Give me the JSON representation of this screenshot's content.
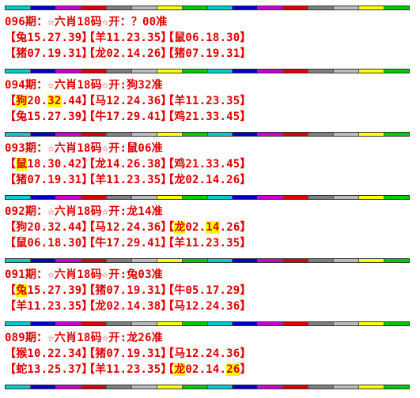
{
  "stripe_colors": [
    "#00cccc",
    "#0000cc",
    "#cc00cc",
    "#dd0000",
    "#7f7f7f",
    "#bbbbbb",
    "#ffff00",
    "#00cc00",
    "#00cccc",
    "#0000cc",
    "#cc00cc",
    "#dd0000",
    "#7f7f7f",
    "#bbbbbb",
    "#ffff00",
    "#00cc00"
  ],
  "text_color": "#e00000",
  "highlight_color": "#ffff00",
  "blocks": [
    {
      "header": "096期：☆六肖18码☆开：？00准",
      "rows": [
        [
          [
            {
              "t": "【兔15.27.39】",
              "h": false
            }
          ],
          [
            {
              "t": "【羊11.23.35】",
              "h": false
            }
          ],
          [
            {
              "t": "【鼠06.18.30】",
              "h": false
            }
          ]
        ],
        [
          [
            {
              "t": "【猪07.19.31】",
              "h": false
            }
          ],
          [
            {
              "t": "【龙02.14.26】",
              "h": false
            }
          ],
          [
            {
              "t": "【猪07.19.31】",
              "h": false
            }
          ]
        ]
      ]
    },
    {
      "header": "094期：☆六肖18码☆开:狗32准",
      "rows": [
        [
          [
            {
              "t": "【",
              "h": false
            },
            {
              "t": "狗",
              "h": true
            },
            {
              "t": "20.",
              "h": false
            },
            {
              "t": "32",
              "h": true
            },
            {
              "t": ".44】",
              "h": false
            }
          ],
          [
            {
              "t": "【马12.24.36】",
              "h": false
            }
          ],
          [
            {
              "t": "【羊11.23.35】",
              "h": false
            }
          ]
        ],
        [
          [
            {
              "t": "【兔15.27.39】",
              "h": false
            }
          ],
          [
            {
              "t": "【牛17.29.41】",
              "h": false
            }
          ],
          [
            {
              "t": "【鸡21.33.45】",
              "h": false
            }
          ]
        ]
      ]
    },
    {
      "header": "093期：☆六肖18码☆开:鼠06准",
      "rows": [
        [
          [
            {
              "t": "【",
              "h": false
            },
            {
              "t": "鼠",
              "h": true
            },
            {
              "t": "18.30.42】",
              "h": false
            }
          ],
          [
            {
              "t": "【龙14.26.38】",
              "h": false
            }
          ],
          [
            {
              "t": "【鸡21.33.45】",
              "h": false
            }
          ]
        ],
        [
          [
            {
              "t": "【猪07.19.31】",
              "h": false
            }
          ],
          [
            {
              "t": "【羊11.23.35】",
              "h": false
            }
          ],
          [
            {
              "t": "【龙02.14.26】",
              "h": false
            }
          ]
        ]
      ]
    },
    {
      "header": "092期：☆六肖18码☆开:龙14准",
      "rows": [
        [
          [
            {
              "t": "【狗20.32.44】",
              "h": false
            }
          ],
          [
            {
              "t": "【马12.24.36】",
              "h": false
            }
          ],
          [
            {
              "t": "【",
              "h": false
            },
            {
              "t": "龙",
              "h": true
            },
            {
              "t": "02.",
              "h": false
            },
            {
              "t": "14",
              "h": true
            },
            {
              "t": ".26】",
              "h": false
            }
          ]
        ],
        [
          [
            {
              "t": "【鼠06.18.30】",
              "h": false
            }
          ],
          [
            {
              "t": "【牛17.29.41】",
              "h": false
            }
          ],
          [
            {
              "t": "【羊11.23.35】",
              "h": false
            }
          ]
        ]
      ]
    },
    {
      "header": "091期：☆六肖18码☆开:兔03准",
      "rows": [
        [
          [
            {
              "t": "【",
              "h": false
            },
            {
              "t": "兔",
              "h": true
            },
            {
              "t": "15.27.39】",
              "h": false
            }
          ],
          [
            {
              "t": "【猪07.19.31】",
              "h": false
            }
          ],
          [
            {
              "t": "【牛05.17.29】",
              "h": false
            }
          ]
        ],
        [
          [
            {
              "t": "【羊11.23.35】",
              "h": false
            }
          ],
          [
            {
              "t": "【龙02.14.38】",
              "h": false
            }
          ],
          [
            {
              "t": "【马12.24.36】",
              "h": false
            }
          ]
        ]
      ]
    },
    {
      "header": "089期：☆六肖18码☆开:龙26准",
      "rows": [
        [
          [
            {
              "t": "【猴10.22.34】",
              "h": false
            }
          ],
          [
            {
              "t": "【猪07.19.31】",
              "h": false
            }
          ],
          [
            {
              "t": "【马12.24.36】",
              "h": false
            }
          ]
        ],
        [
          [
            {
              "t": "【蛇13.25.37】",
              "h": false
            }
          ],
          [
            {
              "t": "【羊11.23.35】",
              "h": false
            }
          ],
          [
            {
              "t": "【",
              "h": false
            },
            {
              "t": "龙",
              "h": true
            },
            {
              "t": "02.14.",
              "h": false
            },
            {
              "t": "26",
              "h": true
            },
            {
              "t": "】",
              "h": false
            }
          ]
        ]
      ]
    }
  ]
}
